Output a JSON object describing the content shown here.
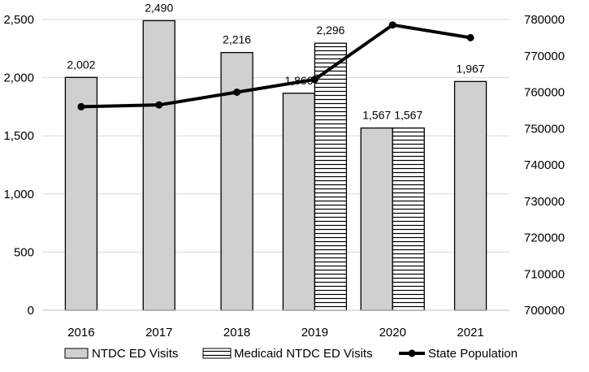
{
  "chart_data": {
    "type": "bar",
    "title": "",
    "xlabel": "",
    "ylabel": "",
    "y2label": "",
    "categories": [
      "2016",
      "2017",
      "2018",
      "2019",
      "2020",
      "2021"
    ],
    "ylim": [
      0,
      2500
    ],
    "y_ticks": [
      0,
      500,
      1000,
      1500,
      2000,
      2500
    ],
    "y_tick_labels": [
      "0",
      "500",
      "1,000",
      "1,500",
      "2,000",
      "2,500"
    ],
    "y2lim": [
      700000,
      780000
    ],
    "y2_ticks": [
      700000,
      710000,
      720000,
      730000,
      740000,
      750000,
      760000,
      770000,
      780000
    ],
    "y2_tick_labels": [
      "700000",
      "710000",
      "720000",
      "730000",
      "740000",
      "750000",
      "760000",
      "770000",
      "780000"
    ],
    "grid": true,
    "legend_position": "bottom",
    "series": [
      {
        "name": "NTDC ED Visits",
        "kind": "bar",
        "axis": "left",
        "fill": "#d0d0d0",
        "values": [
          2002,
          2490,
          2216,
          1866,
          1567,
          1967
        ],
        "labels": [
          "2,002",
          "2,490",
          "2,216",
          "1,866",
          "1,567",
          "1,967"
        ]
      },
      {
        "name": "Medicaid NTDC ED Visits",
        "kind": "bar",
        "axis": "left",
        "fill": "hatch",
        "values": [
          null,
          null,
          null,
          2296,
          1567,
          null
        ],
        "labels": [
          "",
          "",
          "",
          "2,296",
          "1,567",
          ""
        ]
      },
      {
        "name": "State Population",
        "kind": "line",
        "axis": "right",
        "color": "#000000",
        "values": [
          756000,
          756500,
          760000,
          763500,
          778500,
          775000
        ]
      }
    ]
  }
}
